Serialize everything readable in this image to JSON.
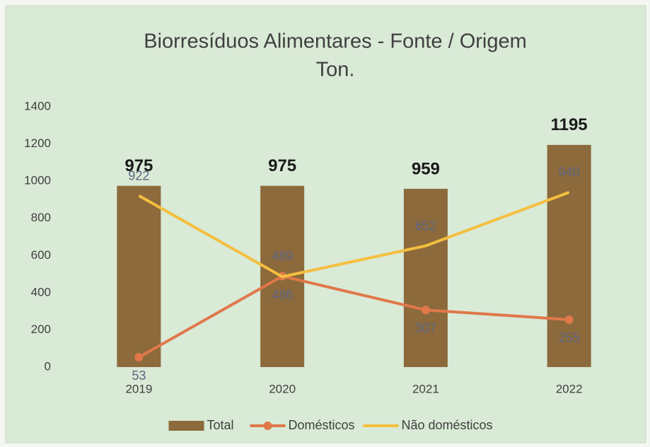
{
  "chart_data": {
    "type": "bar",
    "title": "Biorresíduos Alimentares - Fonte / Origem",
    "subtitle": "Ton.",
    "categories": [
      "2019",
      "2020",
      "2021",
      "2022"
    ],
    "series": [
      {
        "name": "Total",
        "type": "bar",
        "color": "#8c6a3b",
        "values": [
          975,
          975,
          959,
          1195
        ]
      },
      {
        "name": "Domésticos",
        "type": "line",
        "color": "#e0784a",
        "values": [
          53,
          489,
          307,
          255
        ]
      },
      {
        "name": "Não domésticos",
        "type": "line",
        "color": "#f4bf3f",
        "values": [
          922,
          486,
          652,
          940
        ]
      }
    ],
    "ylim": [
      0,
      1400
    ],
    "yticks": [
      0,
      200,
      400,
      600,
      800,
      1000,
      1200,
      1400
    ],
    "grid": false,
    "legend": "bottom"
  }
}
